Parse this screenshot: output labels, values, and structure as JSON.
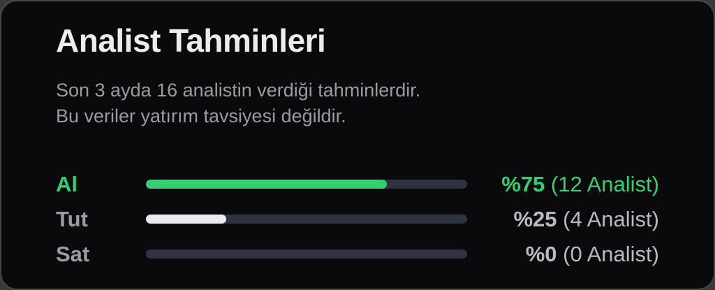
{
  "header": {
    "title": "Analist Tahminleri",
    "subtitle_lines": [
      "Son 3 ayda 16 analistin verdiği tahminlerdir.",
      "Bu veriler yatırım tavsiyesi değildir."
    ]
  },
  "colors": {
    "page_background": "#39393b",
    "card_background": "#0a0a0c",
    "card_border": "#47474b",
    "title_text": "#ececef",
    "subtitle_text": "#9b9ba3",
    "bar_track": "#2f3242",
    "buy_green": "#31d071",
    "neutral_fill": "#e9e9ee",
    "label_gray": "#9b9ba3",
    "value_gray": "#b9b9c2"
  },
  "chart_data": {
    "type": "bar",
    "orientation": "horizontal",
    "title": "Analist Tahminleri",
    "total_analysts": 16,
    "period_months": 3,
    "categories": [
      "Al",
      "Tut",
      "Sat"
    ],
    "values_percent": [
      75,
      25,
      0
    ],
    "analyst_counts": [
      12,
      4,
      0
    ],
    "x_range": [
      0,
      100
    ],
    "grid": false,
    "legend": false,
    "rows": [
      {
        "label": "Al",
        "percent": 75,
        "count": 12,
        "percent_label": "%75",
        "count_label": "(12 Analist)",
        "label_color": "#31d071",
        "bar_color": "#31d071",
        "value_color": "#31d071"
      },
      {
        "label": "Tut",
        "percent": 25,
        "count": 4,
        "percent_label": "%25",
        "count_label": "(4 Analist)",
        "label_color": "#9b9ba3",
        "bar_color": "#e9e9ee",
        "value_color": "#b9b9c2"
      },
      {
        "label": "Sat",
        "percent": 0,
        "count": 0,
        "percent_label": "%0",
        "count_label": "(0 Analist)",
        "label_color": "#9b9ba3",
        "bar_color": "#e9e9ee",
        "value_color": "#b9b9c2"
      }
    ]
  }
}
